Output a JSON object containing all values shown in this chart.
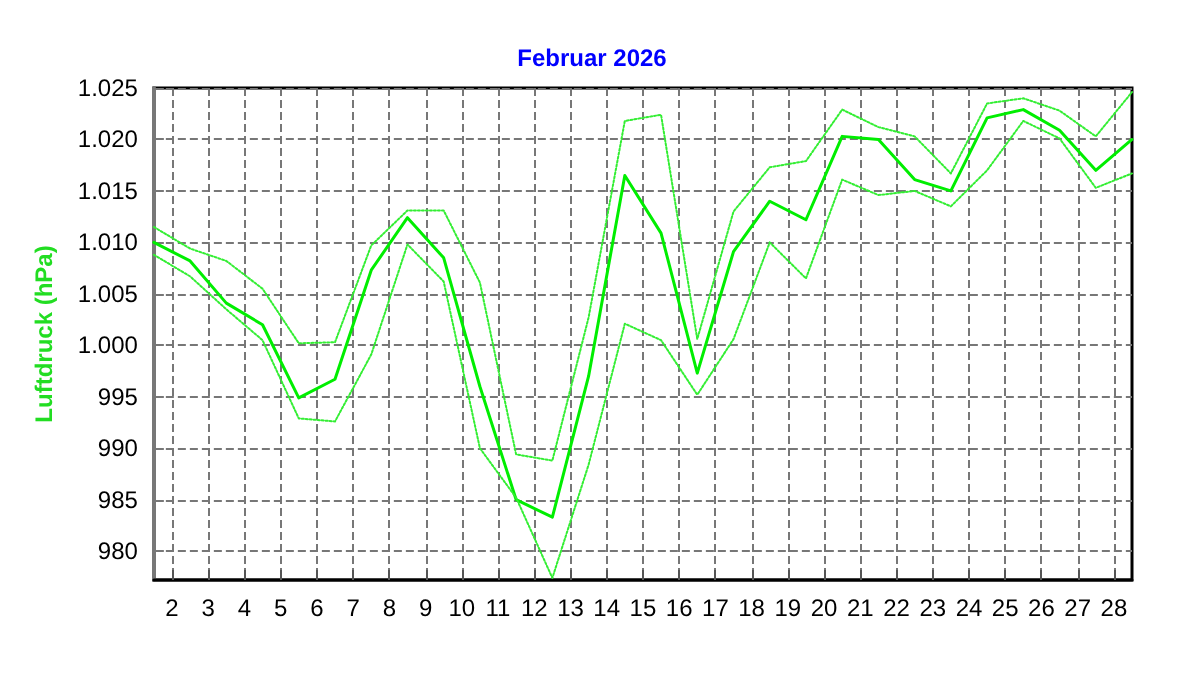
{
  "chart_data": {
    "type": "line",
    "title": "Februar 2026",
    "ylabel": "Luftdruck (hPa)",
    "x": [
      1.5,
      2.5,
      3.5,
      4.5,
      5.5,
      6.5,
      7.5,
      8.5,
      9.5,
      10.5,
      11.5,
      12.5,
      13.5,
      14.5,
      15.5,
      16.5,
      17.5,
      18.5,
      19.5,
      20.5,
      21.5,
      22.5,
      23.5,
      24.5,
      25.5,
      26.5,
      27.5,
      28.5
    ],
    "series": [
      {
        "color": "#33ee33",
        "line_style": "dotted",
        "values": [
          1011.5,
          1009.4,
          1008.2,
          1005.5,
          1000.2,
          1000.3,
          1009.7,
          1013.1,
          1013.1,
          1006.1,
          989.4,
          988.8,
          1002.7,
          1021.8,
          1022.4,
          1000.6,
          1013.0,
          1017.3,
          1017.9,
          1022.9,
          1021.2,
          1020.3,
          1016.7,
          1023.5,
          1024.0,
          1022.8,
          1020.3,
          1024.6
        ]
      },
      {
        "color": "#00ee00",
        "line_style": "solid",
        "values": [
          1010.0,
          1008.2,
          1004.1,
          1002.0,
          994.9,
          996.7,
          1007.3,
          1012.4,
          1008.5,
          996.0,
          985.0,
          983.3,
          997.0,
          1016.5,
          1010.9,
          997.3,
          1009.1,
          1014.0,
          1012.2,
          1020.3,
          1020.0,
          1016.1,
          1015.0,
          1022.1,
          1022.9,
          1020.9,
          1017.0,
          1020.0
        ]
      },
      {
        "color": "#33ee33",
        "line_style": "dotted",
        "values": [
          1008.8,
          1006.7,
          1003.5,
          1000.5,
          992.9,
          992.6,
          999.1,
          1009.8,
          1006.2,
          990.0,
          985.2,
          977.4,
          988.4,
          1002.1,
          1000.5,
          995.2,
          1000.6,
          1010.0,
          1006.5,
          1016.1,
          1014.6,
          1015.0,
          1013.5,
          1017.0,
          1021.8,
          1020.1,
          1015.3,
          1016.7
        ]
      }
    ],
    "xlim": [
      1.5,
      28.5
    ],
    "xticks": [
      2,
      3,
      4,
      5,
      6,
      7,
      8,
      9,
      10,
      11,
      12,
      13,
      14,
      15,
      16,
      17,
      18,
      19,
      20,
      21,
      22,
      23,
      24,
      25,
      26,
      27,
      28
    ],
    "ylim": [
      977.2,
      1025
    ],
    "yticks": [
      980,
      985,
      990,
      995,
      {
        "value": 1000,
        "label": "1.000"
      },
      {
        "value": 1005,
        "label": "1.005"
      },
      {
        "value": 1010,
        "label": "1.010"
      },
      {
        "value": 1015,
        "label": "1.015"
      },
      {
        "value": 1020,
        "label": "1.020"
      },
      {
        "value": 1025,
        "label": "1.025"
      }
    ],
    "grid": true,
    "marker": "none"
  }
}
